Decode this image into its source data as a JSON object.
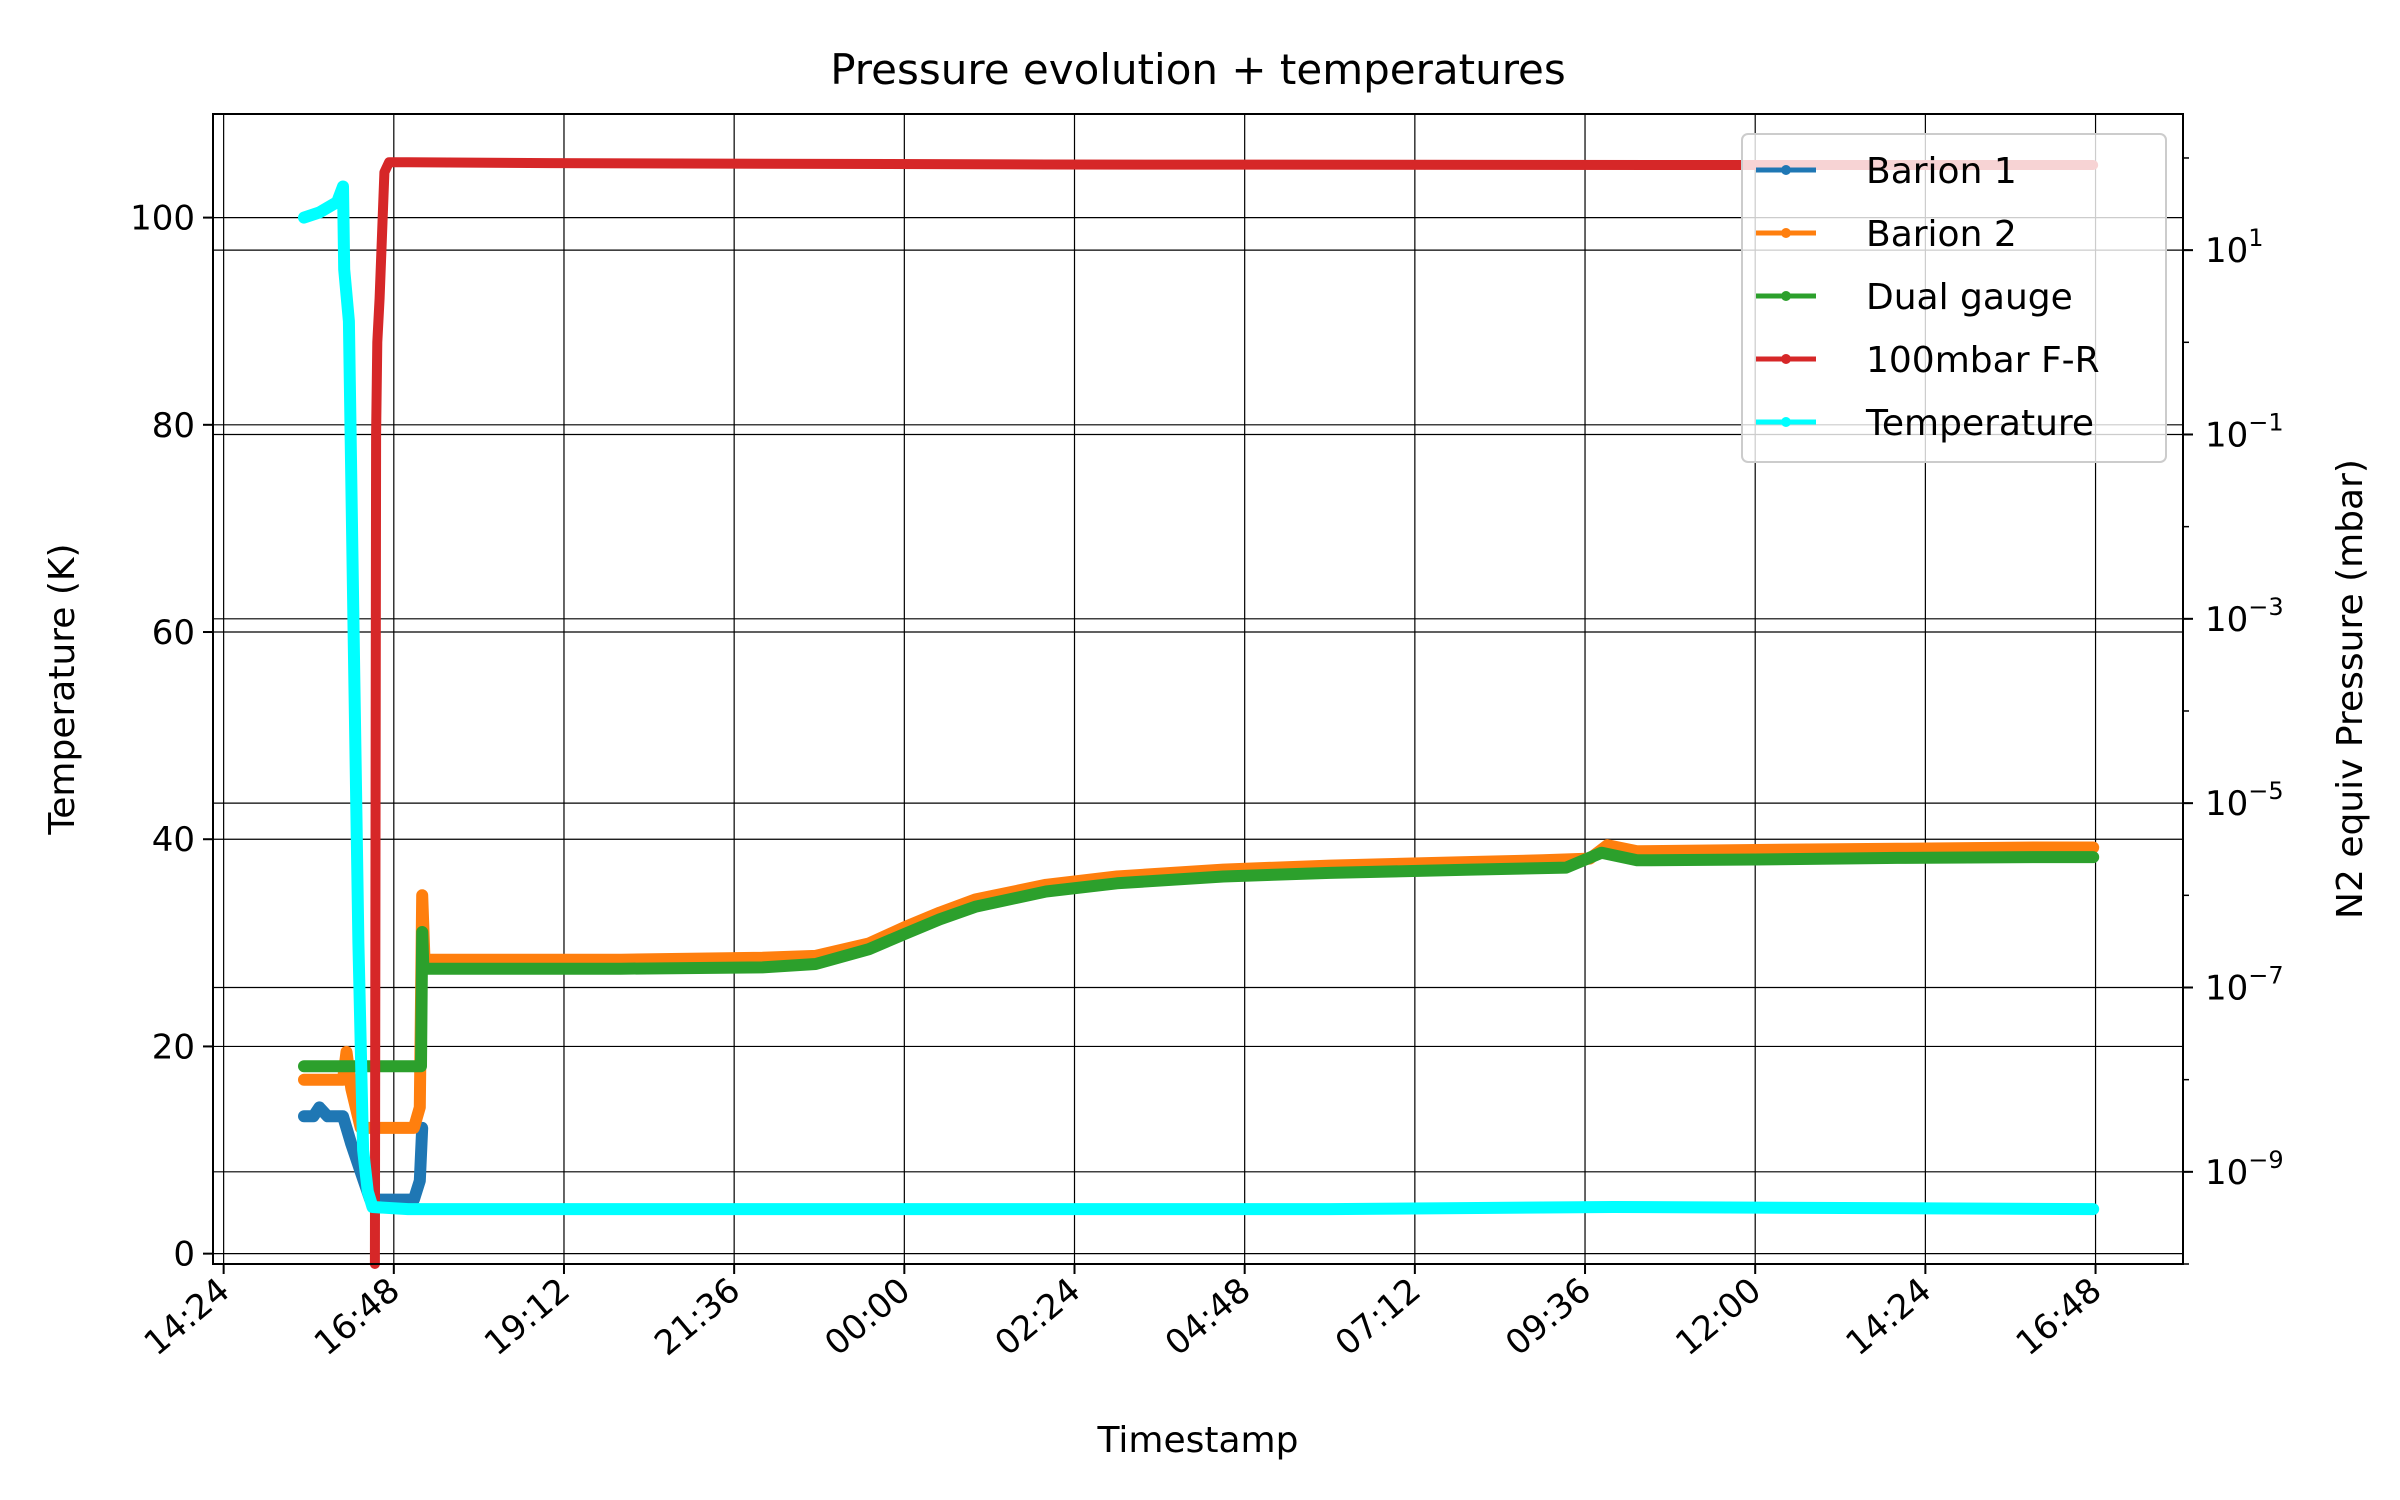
{
  "chart_data": {
    "type": "line",
    "title": "Pressure evolution + temperatures",
    "xlabel": "Timestamp",
    "ylabel_left": "Temperature (K)",
    "ylabel_right": "N2 equiv Pressure (mbar)",
    "x_ticks": [
      "14:24",
      "16:48",
      "19:12",
      "21:36",
      "00:00",
      "02:24",
      "04:48",
      "07:12",
      "09:36",
      "12:00",
      "14:24",
      "16:48"
    ],
    "x_range": [
      "14:15",
      "18:02 (+1 day)"
    ],
    "y_left_ticks": [
      "0",
      "20",
      "40",
      "60",
      "80",
      "100"
    ],
    "y_left_range": [
      -1,
      110
    ],
    "y_right_scale": "log",
    "y_right_ticks": [
      {
        "base": "10",
        "exp": "1"
      },
      {
        "base": "10",
        "exp": "−1"
      },
      {
        "base": "10",
        "exp": "−3"
      },
      {
        "base": "10",
        "exp": "−5"
      },
      {
        "base": "10",
        "exp": "−7"
      },
      {
        "base": "10",
        "exp": "−9"
      }
    ],
    "y_right_range": [
      1e-10,
      300
    ],
    "grid": true,
    "legend_position": "top-right",
    "series": [
      {
        "name": "Barion 1",
        "color": "#1f77b4",
        "axis": "right",
        "points": [
          [
            "15:32",
            4e-09
          ],
          [
            "15:40",
            4e-09
          ],
          [
            "15:45",
            5e-09
          ],
          [
            "15:52",
            4e-09
          ],
          [
            "16:00",
            4e-09
          ],
          [
            "16:05",
            4e-09
          ],
          [
            "16:12",
            2e-09
          ],
          [
            "16:20",
            1e-09
          ],
          [
            "16:28",
            5e-10
          ],
          [
            "16:35",
            5e-10
          ],
          [
            "16:45",
            5e-10
          ],
          [
            "16:55",
            5e-10
          ],
          [
            "17:05",
            5e-10
          ],
          [
            "17:10",
            8e-10
          ],
          [
            "17:12",
            3e-09
          ]
        ]
      },
      {
        "name": "Barion 2",
        "color": "#ff7f0e",
        "axis": "right",
        "points": [
          [
            "15:32",
            1e-08
          ],
          [
            "15:50",
            1e-08
          ],
          [
            "16:05",
            1e-08
          ],
          [
            "16:08",
            2e-08
          ],
          [
            "16:12",
            8e-09
          ],
          [
            "16:20",
            3e-09
          ],
          [
            "16:30",
            3e-09
          ],
          [
            "16:50",
            3e-09
          ],
          [
            "17:05",
            3e-09
          ],
          [
            "17:10",
            5e-09
          ],
          [
            "17:12",
            1e-06
          ],
          [
            "17:14",
            2e-07
          ],
          [
            "18:00",
            2e-07
          ],
          [
            "20:00",
            2e-07
          ],
          [
            "22:00",
            2.1e-07
          ],
          [
            "22:45",
            2.2e-07
          ],
          [
            "23:30",
            3e-07
          ],
          [
            "00:00",
            4.5e-07
          ],
          [
            "00:30",
            6.5e-07
          ],
          [
            "01:00",
            9e-07
          ],
          [
            "02:00",
            1.3e-06
          ],
          [
            "03:00",
            1.6e-06
          ],
          [
            "04:30",
            1.9e-06
          ],
          [
            "06:00",
            2.1e-06
          ],
          [
            "08:00",
            2.3e-06
          ],
          [
            "09:00",
            2.4e-06
          ],
          [
            "09:40",
            2.5e-06
          ],
          [
            "09:55",
            3.5e-06
          ],
          [
            "10:20",
            3e-06
          ],
          [
            "12:00",
            3.1e-06
          ],
          [
            "14:00",
            3.2e-06
          ],
          [
            "16:00",
            3.3e-06
          ],
          [
            "16:46",
            3.3e-06
          ]
        ]
      },
      {
        "name": "Dual gauge",
        "color": "#2ca02c",
        "axis": "right",
        "points": [
          [
            "15:32",
            1.4e-08
          ],
          [
            "16:00",
            1.4e-08
          ],
          [
            "16:30",
            1.4e-08
          ],
          [
            "17:00",
            1.4e-08
          ],
          [
            "17:11",
            1.4e-08
          ],
          [
            "17:12",
            4e-07
          ],
          [
            "17:13",
            1.6e-07
          ],
          [
            "18:00",
            1.6e-07
          ],
          [
            "20:00",
            1.6e-07
          ],
          [
            "22:00",
            1.65e-07
          ],
          [
            "22:45",
            1.8e-07
          ],
          [
            "23:30",
            2.6e-07
          ],
          [
            "00:00",
            3.8e-07
          ],
          [
            "00:30",
            5.5e-07
          ],
          [
            "01:00",
            7.5e-07
          ],
          [
            "02:00",
            1.1e-06
          ],
          [
            "03:00",
            1.35e-06
          ],
          [
            "04:30",
            1.6e-06
          ],
          [
            "06:00",
            1.75e-06
          ],
          [
            "08:00",
            1.9e-06
          ],
          [
            "09:20",
            2e-06
          ],
          [
            "09:50",
            2.9e-06
          ],
          [
            "10:20",
            2.4e-06
          ],
          [
            "12:00",
            2.45e-06
          ],
          [
            "14:00",
            2.55e-06
          ],
          [
            "16:00",
            2.6e-06
          ],
          [
            "16:46",
            2.6e-06
          ]
        ]
      },
      {
        "name": "100mbar F-R",
        "color": "#d62728",
        "axis": "right",
        "points": [
          [
            "16:32",
            1e-10
          ],
          [
            "16:33",
            0.1
          ],
          [
            "16:34",
            1.0
          ],
          [
            "16:36",
            3.0
          ],
          [
            "16:40",
            70
          ],
          [
            "16:44",
            90
          ],
          [
            "17:00",
            90
          ],
          [
            "19:00",
            88
          ],
          [
            "02:00",
            85
          ],
          [
            "11:00",
            84
          ],
          [
            "16:46",
            84
          ]
        ]
      },
      {
        "name": "Temperature",
        "color": "#00ffff",
        "axis": "left",
        "points": [
          [
            "15:32",
            100
          ],
          [
            "15:45",
            100.5
          ],
          [
            "16:00",
            101.5
          ],
          [
            "16:05",
            103
          ],
          [
            "16:06",
            95
          ],
          [
            "16:10",
            90
          ],
          [
            "16:14",
            60
          ],
          [
            "16:18",
            30
          ],
          [
            "16:22",
            10
          ],
          [
            "16:26",
            6
          ],
          [
            "16:30",
            4.5
          ],
          [
            "17:00",
            4.3
          ],
          [
            "20:00",
            4.3
          ],
          [
            "23:00",
            4.3
          ],
          [
            "06:00",
            4.3
          ],
          [
            "10:00",
            4.5
          ],
          [
            "16:46",
            4.3
          ]
        ]
      }
    ]
  }
}
